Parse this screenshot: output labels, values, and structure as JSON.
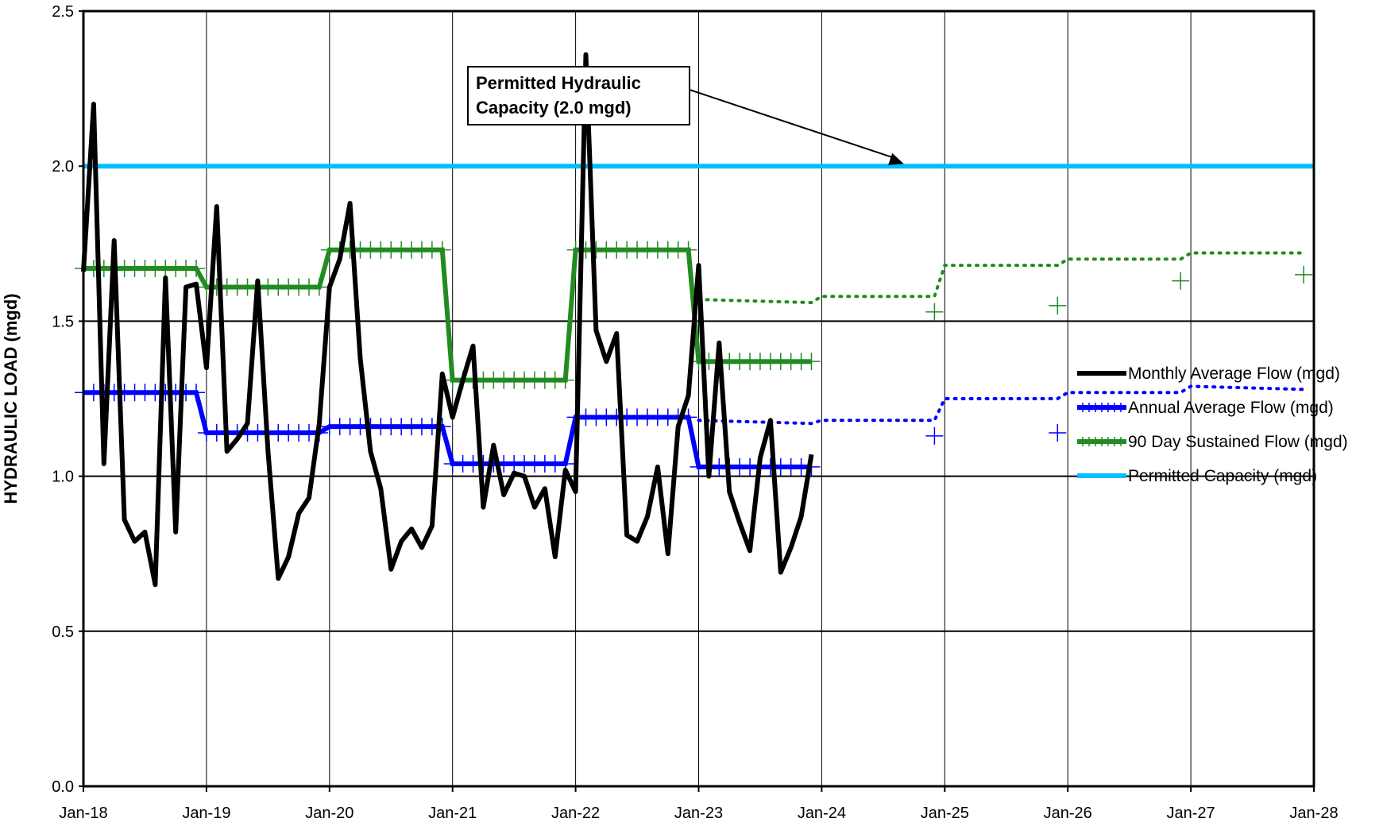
{
  "chart_data": {
    "type": "line",
    "title": "",
    "xlabel": "",
    "ylabel": "HYDRAULIC LOAD (mgd)",
    "ylim": [
      0,
      2.5
    ],
    "yticks": [
      "0.0",
      "0.5",
      "1.0",
      "1.5",
      "2.0",
      "2.5"
    ],
    "xlim": [
      "2018-01",
      "2028-01"
    ],
    "xticks": [
      "Jan-18",
      "Jan-19",
      "Jan-20",
      "Jan-21",
      "Jan-22",
      "Jan-23",
      "Jan-24",
      "Jan-25",
      "Jan-26",
      "Jan-27",
      "Jan-28"
    ],
    "grid": "horizontal and vertical major gridlines",
    "legend_position": "right, middle",
    "annotation": {
      "lines": [
        "Permitted Hydraulic",
        "Capacity (2.0 mgd)"
      ],
      "points_to": [
        "2024-09",
        2.0
      ]
    },
    "series": [
      {
        "name": "Monthly Average Flow (mgd)",
        "color": "#000000",
        "style": "solid",
        "points": [
          [
            "2018-01",
            1.66
          ],
          [
            "2018-02",
            2.2
          ],
          [
            "2018-03",
            1.04
          ],
          [
            "2018-04",
            1.76
          ],
          [
            "2018-05",
            0.86
          ],
          [
            "2018-06",
            0.79
          ],
          [
            "2018-07",
            0.82
          ],
          [
            "2018-08",
            0.65
          ],
          [
            "2018-09",
            1.64
          ],
          [
            "2018-10",
            0.82
          ],
          [
            "2018-11",
            1.61
          ],
          [
            "2018-12",
            1.62
          ],
          [
            "2019-01",
            1.35
          ],
          [
            "2019-02",
            1.87
          ],
          [
            "2019-03",
            1.08
          ],
          [
            "2019-04",
            1.12
          ],
          [
            "2019-05",
            1.17
          ],
          [
            "2019-06",
            1.63
          ],
          [
            "2019-07",
            1.08
          ],
          [
            "2019-08",
            0.67
          ],
          [
            "2019-09",
            0.74
          ],
          [
            "2019-10",
            0.88
          ],
          [
            "2019-11",
            0.93
          ],
          [
            "2019-12",
            1.17
          ],
          [
            "2020-01",
            1.61
          ],
          [
            "2020-02",
            1.7
          ],
          [
            "2020-03",
            1.88
          ],
          [
            "2020-04",
            1.38
          ],
          [
            "2020-05",
            1.08
          ],
          [
            "2020-06",
            0.96
          ],
          [
            "2020-07",
            0.7
          ],
          [
            "2020-08",
            0.79
          ],
          [
            "2020-09",
            0.83
          ],
          [
            "2020-10",
            0.77
          ],
          [
            "2020-11",
            0.84
          ],
          [
            "2020-12",
            1.33
          ],
          [
            "2021-01",
            1.19
          ],
          [
            "2021-02",
            1.31
          ],
          [
            "2021-03",
            1.42
          ],
          [
            "2021-04",
            0.9
          ],
          [
            "2021-05",
            1.1
          ],
          [
            "2021-06",
            0.94
          ],
          [
            "2021-07",
            1.01
          ],
          [
            "2021-08",
            1.0
          ],
          [
            "2021-09",
            0.9
          ],
          [
            "2021-10",
            0.96
          ],
          [
            "2021-11",
            0.74
          ],
          [
            "2021-12",
            1.02
          ],
          [
            "2022-01",
            0.95
          ],
          [
            "2022-02",
            2.36
          ],
          [
            "2022-03",
            1.47
          ],
          [
            "2022-04",
            1.37
          ],
          [
            "2022-05",
            1.46
          ],
          [
            "2022-06",
            0.81
          ],
          [
            "2022-07",
            0.79
          ],
          [
            "2022-08",
            0.87
          ],
          [
            "2022-09",
            1.03
          ],
          [
            "2022-10",
            0.75
          ],
          [
            "2022-11",
            1.16
          ],
          [
            "2022-12",
            1.26
          ],
          [
            "2023-01",
            1.68
          ],
          [
            "2023-02",
            1.0
          ],
          [
            "2023-03",
            1.43
          ],
          [
            "2023-04",
            0.95
          ],
          [
            "2023-05",
            0.85
          ],
          [
            "2023-06",
            0.76
          ],
          [
            "2023-07",
            1.06
          ],
          [
            "2023-08",
            1.18
          ],
          [
            "2023-09",
            0.69
          ],
          [
            "2023-10",
            0.77
          ],
          [
            "2023-11",
            0.87
          ],
          [
            "2023-12",
            1.07
          ]
        ]
      },
      {
        "name": "Annual Average Flow (mgd)",
        "color": "#0000ff",
        "style": "solid",
        "points": [
          [
            "2018-01",
            1.27
          ],
          [
            "2018-12",
            1.27
          ],
          [
            "2019-01",
            1.14
          ],
          [
            "2019-12",
            1.14
          ],
          [
            "2020-01",
            1.16
          ],
          [
            "2020-12",
            1.16
          ],
          [
            "2021-01",
            1.04
          ],
          [
            "2021-12",
            1.04
          ],
          [
            "2022-01",
            1.19
          ],
          [
            "2022-12",
            1.19
          ],
          [
            "2023-01",
            1.03
          ],
          [
            "2023-12",
            1.03
          ]
        ],
        "projection": [
          [
            "2023-01",
            1.18
          ],
          [
            "2023-12",
            1.17
          ],
          [
            "2024-01",
            1.18
          ],
          [
            "2024-12",
            1.18
          ],
          [
            "2025-01",
            1.25
          ],
          [
            "2025-12",
            1.25
          ],
          [
            "2026-01",
            1.27
          ],
          [
            "2026-12",
            1.27
          ],
          [
            "2027-01",
            1.29
          ],
          [
            "2027-12",
            1.28
          ]
        ],
        "projection_markers": [
          [
            "2024-12",
            1.13
          ],
          [
            "2025-12",
            1.14
          ]
        ]
      },
      {
        "name": "90 Day Sustained Flow (mgd)",
        "color": "#228b22",
        "style": "solid",
        "points": [
          [
            "2018-01",
            1.67
          ],
          [
            "2018-12",
            1.67
          ],
          [
            "2019-01",
            1.61
          ],
          [
            "2019-12",
            1.61
          ],
          [
            "2020-01",
            1.73
          ],
          [
            "2020-12",
            1.73
          ],
          [
            "2021-01",
            1.31
          ],
          [
            "2021-12",
            1.31
          ],
          [
            "2022-01",
            1.73
          ],
          [
            "2022-12",
            1.73
          ],
          [
            "2023-01",
            1.37
          ],
          [
            "2023-12",
            1.37
          ]
        ],
        "projection": [
          [
            "2023-01",
            1.57
          ],
          [
            "2023-12",
            1.56
          ],
          [
            "2024-01",
            1.58
          ],
          [
            "2024-12",
            1.58
          ],
          [
            "2025-01",
            1.68
          ],
          [
            "2025-12",
            1.68
          ],
          [
            "2026-01",
            1.7
          ],
          [
            "2026-12",
            1.7
          ],
          [
            "2027-01",
            1.72
          ],
          [
            "2027-12",
            1.72
          ]
        ],
        "projection_markers": [
          [
            "2024-12",
            1.53
          ],
          [
            "2025-12",
            1.55
          ],
          [
            "2026-12",
            1.63
          ],
          [
            "2027-12",
            1.65
          ]
        ]
      },
      {
        "name": "Permitted Capacity (mgd)",
        "color": "#00bfff",
        "style": "solid",
        "points": [
          [
            "2018-01",
            2.0
          ],
          [
            "2028-01",
            2.0
          ]
        ]
      }
    ]
  }
}
